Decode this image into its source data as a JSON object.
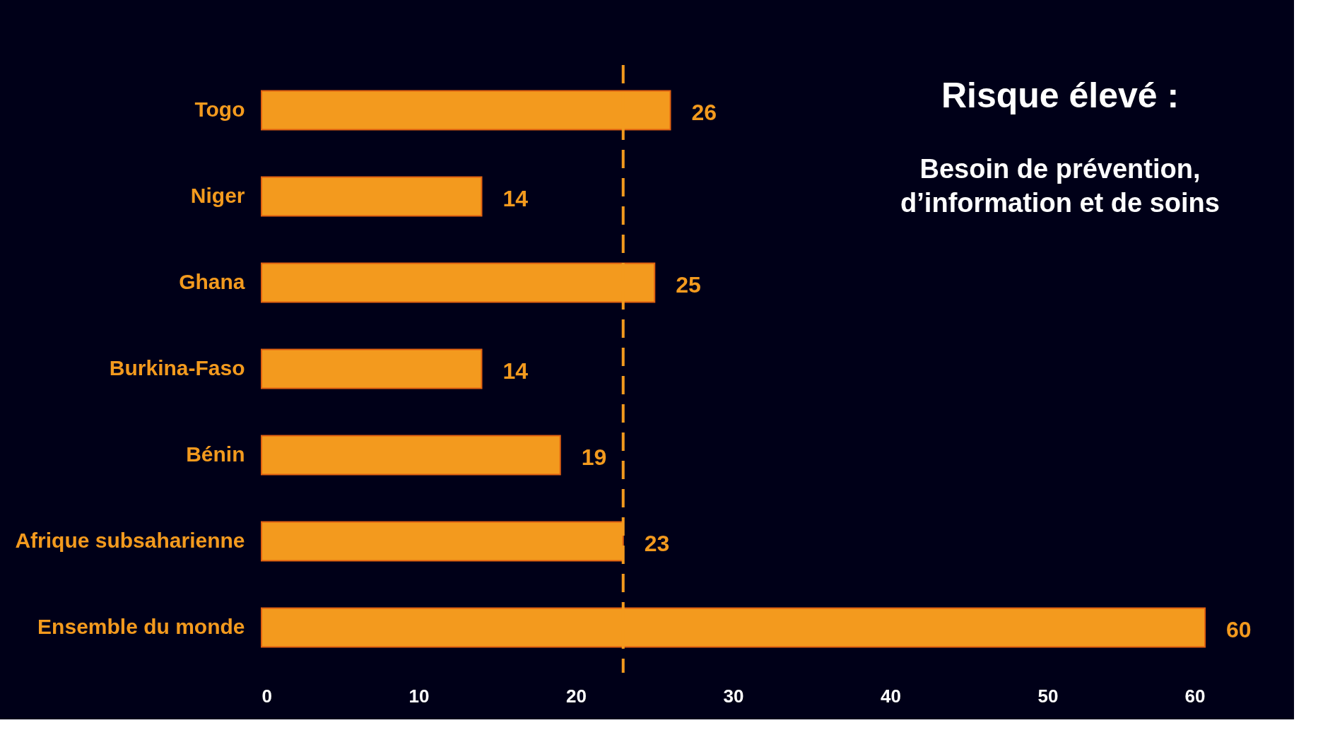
{
  "chart_data": {
    "type": "bar",
    "orientation": "horizontal",
    "categories": [
      "Togo",
      "Niger",
      "Ghana",
      "Burkina-Faso",
      "Bénin",
      "Afrique subsaharienne",
      "Ensemble du monde"
    ],
    "values": [
      26,
      14,
      25,
      14,
      19,
      23,
      60
    ],
    "color": "#f39a1e",
    "data_labels": true,
    "xlim": [
      0,
      60
    ],
    "xticks": [
      0,
      10,
      20,
      30,
      40,
      50,
      60
    ],
    "grid": false,
    "ref_lines": [
      {
        "axis": "x",
        "value": 23,
        "color": "#f39a1e",
        "line_style": "dashed"
      }
    ],
    "annotations": [
      "Risque élevé :",
      "Besoin de prévention,\nd’information et de soins"
    ]
  }
}
